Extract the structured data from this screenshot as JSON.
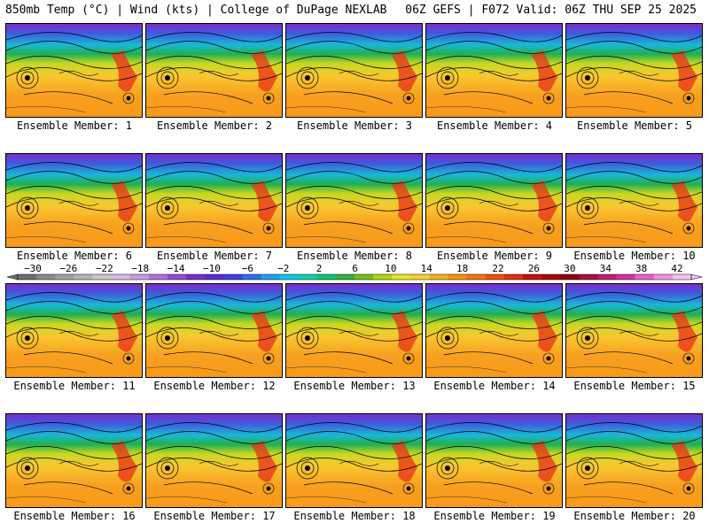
{
  "header": {
    "left": "850mb Temp (°C) | Wind (kts) | College of DuPage NEXLAB",
    "right": "06Z GEFS | F072 Valid: 06Z THU SEP 25 2025"
  },
  "label_prefix": "Ensemble Member:",
  "members": [
    {
      "number": "1"
    },
    {
      "number": "2"
    },
    {
      "number": "3"
    },
    {
      "number": "4"
    },
    {
      "number": "5"
    },
    {
      "number": "6"
    },
    {
      "number": "7"
    },
    {
      "number": "8"
    },
    {
      "number": "9"
    },
    {
      "number": "10"
    },
    {
      "number": "11"
    },
    {
      "number": "12"
    },
    {
      "number": "13"
    },
    {
      "number": "14"
    },
    {
      "number": "15"
    },
    {
      "number": "16"
    },
    {
      "number": "17"
    },
    {
      "number": "18"
    },
    {
      "number": "19"
    },
    {
      "number": "20"
    }
  ],
  "colorbar": {
    "tick_labels": [
      "−30",
      "−26",
      "−22",
      "−18",
      "−14",
      "−10",
      "−6",
      "−2",
      "2",
      "6",
      "10",
      "14",
      "18",
      "22",
      "26",
      "30",
      "34",
      "38",
      "42"
    ],
    "colors": [
      "#6e6e6e",
      "#8a8a8a",
      "#a0a0a0",
      "#b4b4b4",
      "#c8c8c8",
      "#d8b8e8",
      "#c89be0",
      "#b070d8",
      "#9848d0",
      "#7b2ec8",
      "#5a2bd0",
      "#3f3fe0",
      "#2f6ee8",
      "#1f9ef0",
      "#10c8e8",
      "#10d0b0",
      "#10c070",
      "#30b040",
      "#70c020",
      "#b0d810",
      "#e8e820",
      "#f8d030",
      "#f8b020",
      "#f89010",
      "#f87010",
      "#f05010",
      "#e03010",
      "#c81010",
      "#a80808",
      "#900010",
      "#a81040",
      "#c02070",
      "#d830a0",
      "#e860c8",
      "#f090e0",
      "#f8c0f0"
    ]
  }
}
